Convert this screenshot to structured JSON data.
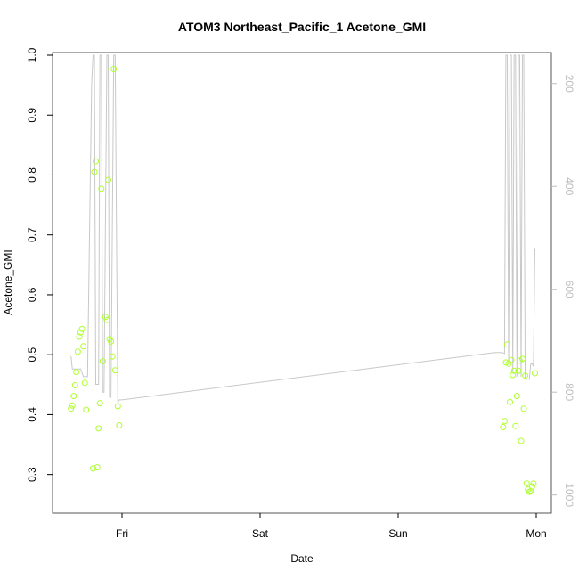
{
  "chart_data": {
    "type": "scatter",
    "title": "ATOM3 Northeast_Pacific_1 Acetone_GMI",
    "xlabel": "Date",
    "ylabel": "Acetone_GMI",
    "ylim": [
      0.24,
      1.0
    ],
    "xlim": [
      -0.5,
      3.1
    ],
    "x_tick_labels": [
      "Fri",
      "Sat",
      "Sun",
      "Mon"
    ],
    "x_tick_values": [
      0,
      1,
      2,
      3
    ],
    "y_ticks": [
      0.3,
      0.4,
      0.5,
      0.6,
      0.7,
      0.8,
      0.9,
      1.0
    ],
    "y_tick_labels": [
      "0.3",
      "0.4",
      "0.5",
      "0.6",
      "0.7",
      "0.8",
      "0.9",
      "1.0"
    ],
    "right_axis": {
      "ylim": [
        1030,
        145
      ],
      "ticks": [
        200,
        400,
        600,
        800,
        1000
      ],
      "tick_labels": [
        "200",
        "400",
        "600",
        "800",
        "1000"
      ]
    },
    "colors": {
      "points": "#adff2f",
      "line": "#c8c8c8",
      "right_axis": "#bdbdbd"
    },
    "series": [
      {
        "type": "scatter",
        "points": [
          {
            "x": -0.37,
            "y": 0.41
          },
          {
            "x": -0.36,
            "y": 0.415
          },
          {
            "x": -0.35,
            "y": 0.431
          },
          {
            "x": -0.34,
            "y": 0.449
          },
          {
            "x": -0.33,
            "y": 0.471
          },
          {
            "x": -0.32,
            "y": 0.505
          },
          {
            "x": -0.31,
            "y": 0.53
          },
          {
            "x": -0.3,
            "y": 0.537
          },
          {
            "x": -0.29,
            "y": 0.543
          },
          {
            "x": -0.28,
            "y": 0.514
          },
          {
            "x": -0.27,
            "y": 0.453
          },
          {
            "x": -0.26,
            "y": 0.408
          },
          {
            "x": -0.21,
            "y": 0.31
          },
          {
            "x": -0.2,
            "y": 0.805
          },
          {
            "x": -0.19,
            "y": 0.823
          },
          {
            "x": -0.18,
            "y": 0.312
          },
          {
            "x": -0.17,
            "y": 0.377
          },
          {
            "x": -0.16,
            "y": 0.419
          },
          {
            "x": -0.15,
            "y": 0.777
          },
          {
            "x": -0.14,
            "y": 0.489
          },
          {
            "x": -0.12,
            "y": 0.563
          },
          {
            "x": -0.11,
            "y": 0.558
          },
          {
            "x": -0.1,
            "y": 0.792
          },
          {
            "x": -0.09,
            "y": 0.526
          },
          {
            "x": -0.08,
            "y": 0.522
          },
          {
            "x": -0.07,
            "y": 0.497
          },
          {
            "x": -0.06,
            "y": 0.977
          },
          {
            "x": -0.05,
            "y": 0.474
          },
          {
            "x": -0.03,
            "y": 0.414
          },
          {
            "x": -0.02,
            "y": 0.382
          },
          {
            "x": 2.76,
            "y": 0.379
          },
          {
            "x": 2.77,
            "y": 0.389
          },
          {
            "x": 2.78,
            "y": 0.487
          },
          {
            "x": 2.79,
            "y": 0.517
          },
          {
            "x": 2.8,
            "y": 0.485
          },
          {
            "x": 2.81,
            "y": 0.421
          },
          {
            "x": 2.82,
            "y": 0.491
          },
          {
            "x": 2.83,
            "y": 0.466
          },
          {
            "x": 2.84,
            "y": 0.473
          },
          {
            "x": 2.85,
            "y": 0.381
          },
          {
            "x": 2.86,
            "y": 0.431
          },
          {
            "x": 2.87,
            "y": 0.473
          },
          {
            "x": 2.88,
            "y": 0.49
          },
          {
            "x": 2.89,
            "y": 0.356
          },
          {
            "x": 2.9,
            "y": 0.493
          },
          {
            "x": 2.91,
            "y": 0.41
          },
          {
            "x": 2.92,
            "y": 0.465
          },
          {
            "x": 2.93,
            "y": 0.285
          },
          {
            "x": 2.94,
            "y": 0.275
          },
          {
            "x": 2.95,
            "y": 0.271
          },
          {
            "x": 2.96,
            "y": 0.272
          },
          {
            "x": 2.97,
            "y": 0.28
          },
          {
            "x": 2.98,
            "y": 0.285
          },
          {
            "x": 2.99,
            "y": 0.469
          }
        ]
      },
      {
        "type": "line",
        "axis": "right",
        "points": [
          {
            "x": -0.37,
            "y": 730
          },
          {
            "x": -0.36,
            "y": 755
          },
          {
            "x": -0.34,
            "y": 755
          },
          {
            "x": -0.32,
            "y": 755
          },
          {
            "x": -0.3,
            "y": 755
          },
          {
            "x": -0.28,
            "y": 770
          },
          {
            "x": -0.25,
            "y": 770
          },
          {
            "x": -0.22,
            "y": 200
          },
          {
            "x": -0.21,
            "y": 145
          },
          {
            "x": -0.2,
            "y": 145
          },
          {
            "x": -0.19,
            "y": 785
          },
          {
            "x": -0.17,
            "y": 785
          },
          {
            "x": -0.16,
            "y": 145
          },
          {
            "x": -0.15,
            "y": 145
          },
          {
            "x": -0.14,
            "y": 800
          },
          {
            "x": -0.13,
            "y": 800
          },
          {
            "x": -0.11,
            "y": 145
          },
          {
            "x": -0.1,
            "y": 145
          },
          {
            "x": -0.09,
            "y": 810
          },
          {
            "x": -0.08,
            "y": 810
          },
          {
            "x": -0.06,
            "y": 145
          },
          {
            "x": -0.05,
            "y": 145
          },
          {
            "x": -0.03,
            "y": 820
          },
          {
            "x": -0.02,
            "y": 815
          },
          {
            "x": 0.0,
            "y": 815
          },
          {
            "x": 2.7,
            "y": 723
          },
          {
            "x": 2.75,
            "y": 723
          },
          {
            "x": 2.77,
            "y": 725
          },
          {
            "x": 2.78,
            "y": 145
          },
          {
            "x": 2.79,
            "y": 145
          },
          {
            "x": 2.8,
            "y": 745
          },
          {
            "x": 2.81,
            "y": 145
          },
          {
            "x": 2.82,
            "y": 145
          },
          {
            "x": 2.83,
            "y": 760
          },
          {
            "x": 2.84,
            "y": 145
          },
          {
            "x": 2.85,
            "y": 145
          },
          {
            "x": 2.86,
            "y": 770
          },
          {
            "x": 2.87,
            "y": 145
          },
          {
            "x": 2.88,
            "y": 145
          },
          {
            "x": 2.89,
            "y": 770
          },
          {
            "x": 2.9,
            "y": 145
          },
          {
            "x": 2.91,
            "y": 145
          },
          {
            "x": 2.92,
            "y": 775
          },
          {
            "x": 2.93,
            "y": 775
          },
          {
            "x": 2.95,
            "y": 775
          },
          {
            "x": 2.96,
            "y": 745
          },
          {
            "x": 2.97,
            "y": 745
          },
          {
            "x": 2.98,
            "y": 750
          },
          {
            "x": 2.99,
            "y": 520
          }
        ]
      }
    ]
  }
}
